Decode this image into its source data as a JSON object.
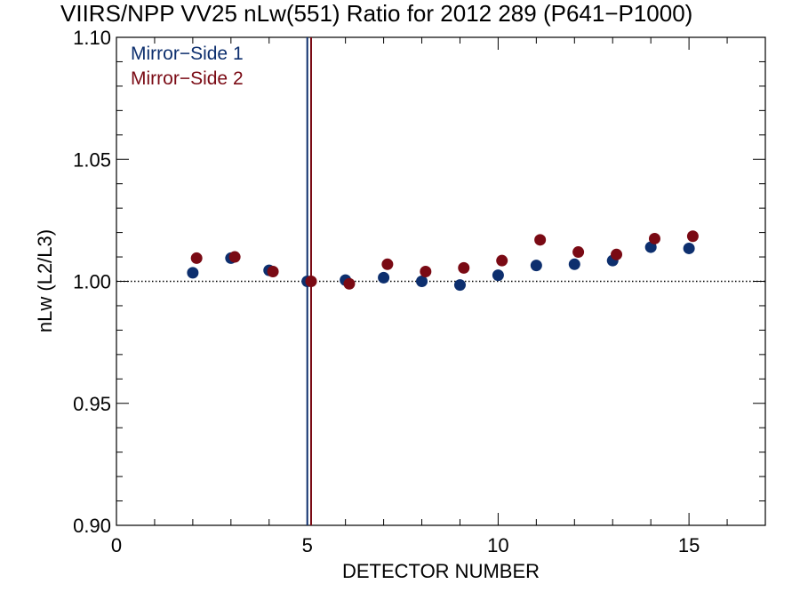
{
  "chart_data": {
    "type": "scatter",
    "title": "VIIRS/NPP VV25 nLw(551) Ratio for 2012 289 (P641−P1000)",
    "xlabel": "DETECTOR NUMBER",
    "ylabel": "nLw (L2/L3)",
    "xlim": [
      0,
      17
    ],
    "ylim": [
      0.9,
      1.1
    ],
    "x_ticks": [
      0,
      5,
      10,
      15
    ],
    "x_tick_labels": [
      "0",
      "5",
      "10",
      "15"
    ],
    "y_ticks": [
      0.9,
      0.95,
      1.0,
      1.05,
      1.1
    ],
    "y_tick_labels": [
      "0.90",
      "0.95",
      "1.00",
      "1.05",
      "1.10"
    ],
    "reference_line_y": 1.0,
    "reference_detector": 5,
    "grid": false,
    "legend_position": "top-left",
    "series": [
      {
        "name": "Mirror−Side 1",
        "color": "#0d2f6e",
        "x": [
          2,
          3,
          4,
          5,
          6,
          7,
          8,
          9,
          10,
          11,
          12,
          13,
          14,
          15
        ],
        "y": [
          1.0035,
          1.0095,
          1.0045,
          1.0,
          1.0005,
          1.0015,
          1.0,
          0.9985,
          1.0025,
          1.0065,
          1.007,
          1.0085,
          1.014,
          1.0135
        ]
      },
      {
        "name": "Mirror−Side 2",
        "color": "#7a0a14",
        "x": [
          2.1,
          3.1,
          4.1,
          5.1,
          6.1,
          7.1,
          8.1,
          9.1,
          10.1,
          11.1,
          12.1,
          13.1,
          14.1,
          15.1
        ],
        "y": [
          1.0095,
          1.01,
          1.004,
          1.0,
          0.999,
          1.007,
          1.004,
          1.0055,
          1.0085,
          1.017,
          1.012,
          1.011,
          1.0175,
          1.0185
        ]
      }
    ]
  }
}
